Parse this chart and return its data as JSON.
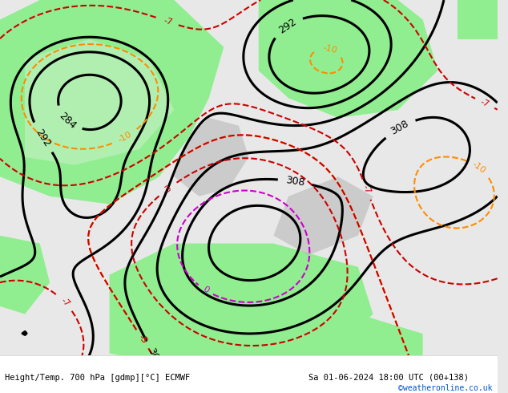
{
  "title_left": "Height/Temp. 700 hPa [gdmp][°C] ECMWF",
  "title_right": "Sa 01-06-2024 18:00 UTC (00+138)",
  "credit": "©weatheronline.co.uk",
  "credit_color": "#0055cc",
  "bg_color": "#e8e8e8",
  "green_color": "#90ee90",
  "light_green_color": "#c8f0c8",
  "gray_color": "#b0b0b0",
  "black_line_color": "#000000",
  "orange_line_color": "#ff8c00",
  "red_line_color": "#cc0000",
  "magenta_line_color": "#cc00cc",
  "text_color": "#000000",
  "figsize": [
    6.34,
    4.9
  ],
  "dpi": 100
}
